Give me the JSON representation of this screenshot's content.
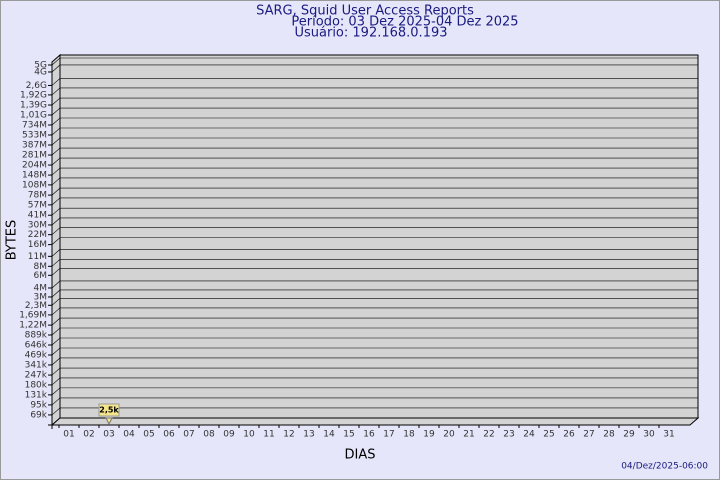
{
  "chart_data": {
    "type": "bar",
    "title": "SARG, Squid User Access Reports",
    "subtitle": "Período: 03 Dez 2025-04 Dez 2025",
    "user": "Usuário: 192.168.0.193",
    "ylabel": "BYTES",
    "xlabel": "DIAS",
    "footer": "04/Dez/2025-06:00",
    "log_scale": true,
    "grid": true,
    "color": "#f5e68c",
    "categories": [
      "01",
      "02",
      "03",
      "04",
      "05",
      "06",
      "07",
      "08",
      "09",
      "10",
      "11",
      "12",
      "13",
      "14",
      "15",
      "16",
      "17",
      "18",
      "19",
      "20",
      "21",
      "22",
      "23",
      "24",
      "25",
      "26",
      "27",
      "28",
      "29",
      "30",
      "31"
    ],
    "values": [
      null,
      null,
      2500,
      null,
      null,
      null,
      null,
      null,
      null,
      null,
      null,
      null,
      null,
      null,
      null,
      null,
      null,
      null,
      null,
      null,
      null,
      null,
      null,
      null,
      null,
      null,
      null,
      null,
      null,
      null,
      null
    ],
    "value_labels": [
      null,
      null,
      "2,5k",
      null,
      null,
      null,
      null,
      null,
      null,
      null,
      null,
      null,
      null,
      null,
      null,
      null,
      null,
      null,
      null,
      null,
      null,
      null,
      null,
      null,
      null,
      null,
      null,
      null,
      null,
      null,
      null
    ],
    "ylim": [
      50000,
      5000000000
    ],
    "yticks": [
      {
        "value": 69000,
        "label": "69k"
      },
      {
        "value": 95000,
        "label": "95k"
      },
      {
        "value": 131000,
        "label": "131k"
      },
      {
        "value": 180000,
        "label": "180k"
      },
      {
        "value": 247000,
        "label": "247k"
      },
      {
        "value": 341000,
        "label": "341k"
      },
      {
        "value": 469000,
        "label": "469k"
      },
      {
        "value": 646000,
        "label": "646k"
      },
      {
        "value": 889000,
        "label": "889k"
      },
      {
        "value": 1220000,
        "label": "1,22M"
      },
      {
        "value": 1690000,
        "label": "1,69M"
      },
      {
        "value": 2300000,
        "label": "2,3M"
      },
      {
        "value": 3000000,
        "label": "3M"
      },
      {
        "value": 4000000,
        "label": "4M"
      },
      {
        "value": 6000000,
        "label": "6M"
      },
      {
        "value": 8000000,
        "label": "8M"
      },
      {
        "value": 11000000,
        "label": "11M"
      },
      {
        "value": 16000000,
        "label": "16M"
      },
      {
        "value": 22000000,
        "label": "22M"
      },
      {
        "value": 30000000,
        "label": "30M"
      },
      {
        "value": 41000000,
        "label": "41M"
      },
      {
        "value": 57000000,
        "label": "57M"
      },
      {
        "value": 78000000,
        "label": "78M"
      },
      {
        "value": 108000000,
        "label": "108M"
      },
      {
        "value": 148000000,
        "label": "148M"
      },
      {
        "value": 204000000,
        "label": "204M"
      },
      {
        "value": 281000000,
        "label": "281M"
      },
      {
        "value": 387000000,
        "label": "387M"
      },
      {
        "value": 533000000,
        "label": "533M"
      },
      {
        "value": 734000000,
        "label": "734M"
      },
      {
        "value": 1010000000,
        "label": "1,01G"
      },
      {
        "value": 1390000000,
        "label": "1,39G"
      },
      {
        "value": 1920000000,
        "label": "1,92G"
      },
      {
        "value": 2600000000,
        "label": "2,6G"
      },
      {
        "value": 4000000000,
        "label": "4G"
      },
      {
        "value": 5000000000,
        "label": "5G"
      }
    ]
  }
}
